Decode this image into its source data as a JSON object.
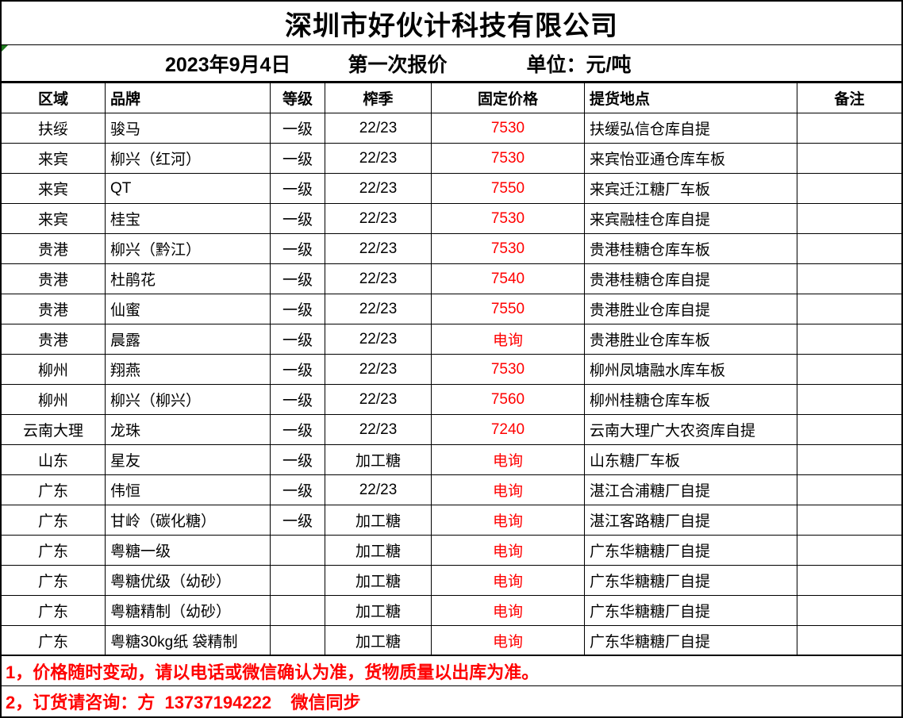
{
  "header": {
    "company": "深圳市好伙计科技有限公司",
    "date": "2023年9月4日",
    "quote_round": "第一次报价",
    "unit": "单位：元/吨"
  },
  "table": {
    "columns": {
      "region": "区域",
      "brand": "品牌",
      "grade": "等级",
      "season": "榨季",
      "price": "固定价格",
      "location": "提货地点",
      "remark": "备注"
    },
    "rows": [
      {
        "region": "扶绥",
        "brand": "骏马",
        "grade": "一级",
        "season": "22/23",
        "price": "7530",
        "location": "扶缓弘信仓库自提",
        "remark": ""
      },
      {
        "region": "来宾",
        "brand": "柳兴（红河）",
        "grade": "一级",
        "season": "22/23",
        "price": "7530",
        "location": "来宾怡亚通仓库车板",
        "remark": ""
      },
      {
        "region": "来宾",
        "brand": "QT",
        "grade": "一级",
        "season": "22/23",
        "price": "7550",
        "location": "来宾迁江糖厂车板",
        "remark": ""
      },
      {
        "region": "来宾",
        "brand": "桂宝",
        "grade": "一级",
        "season": "22/23",
        "price": "7530",
        "location": "来宾融桂仓库自提",
        "remark": ""
      },
      {
        "region": "贵港",
        "brand": "柳兴（黔江）",
        "grade": "一级",
        "season": "22/23",
        "price": "7530",
        "location": "贵港桂糖仓库车板",
        "remark": ""
      },
      {
        "region": "贵港",
        "brand": "杜鹃花",
        "grade": "一级",
        "season": "22/23",
        "price": "7540",
        "location": "贵港桂糖仓库自提",
        "remark": ""
      },
      {
        "region": "贵港",
        "brand": "仙蜜",
        "grade": "一级",
        "season": "22/23",
        "price": "7550",
        "location": "贵港胜业仓库自提",
        "remark": ""
      },
      {
        "region": "贵港",
        "brand": "晨露",
        "grade": "一级",
        "season": "22/23",
        "price": "电询",
        "location": "贵港胜业仓库车板",
        "remark": ""
      },
      {
        "region": "柳州",
        "brand": "翔燕",
        "grade": "一级",
        "season": "22/23",
        "price": "7530",
        "location": "柳州凤塘融水库车板",
        "remark": ""
      },
      {
        "region": "柳州",
        "brand": "柳兴（柳兴）",
        "grade": "一级",
        "season": "22/23",
        "price": "7560",
        "location": "柳州桂糖仓库车板",
        "remark": ""
      },
      {
        "region": "云南大理",
        "brand": "龙珠",
        "grade": "一级",
        "season": "22/23",
        "price": "7240",
        "location": "云南大理广大农资库自提",
        "remark": ""
      },
      {
        "region": "山东",
        "brand": "星友",
        "grade": "一级",
        "season": "加工糖",
        "price": "电询",
        "location": "山东糖厂车板",
        "remark": ""
      },
      {
        "region": "广东",
        "brand": "伟恒",
        "grade": "一级",
        "season": "22/23",
        "price": "电询",
        "location": "湛江合浦糖厂自提",
        "remark": ""
      },
      {
        "region": "广东",
        "brand": "甘岭（碳化糖）",
        "grade": "一级",
        "season": "加工糖",
        "price": "电询",
        "location": "湛江客路糖厂自提",
        "remark": ""
      },
      {
        "region": "广东",
        "brand": "粤糖一级",
        "grade": "",
        "season": "加工糖",
        "price": "电询",
        "location": "广东华糖糖厂自提",
        "remark": ""
      },
      {
        "region": "广东",
        "brand": "粤糖优级（幼砂）",
        "grade": "",
        "season": "加工糖",
        "price": "电询",
        "location": "广东华糖糖厂自提",
        "remark": ""
      },
      {
        "region": "广东",
        "brand": "粤糖精制（幼砂）",
        "grade": "",
        "season": "加工糖",
        "price": "电询",
        "location": "广东华糖糖厂自提",
        "remark": ""
      },
      {
        "region": "广东",
        "brand": "粤糖30kg纸 袋精制",
        "grade": "",
        "season": "加工糖",
        "price": "电询",
        "location": "广东华糖糖厂自提",
        "remark": ""
      }
    ]
  },
  "footer": {
    "note1": "1，价格随时变动，请以电话或微信确认为准，货物质量以出库为准。",
    "note2": "2，订货请咨询：方  13737194222    微信同步"
  },
  "colors": {
    "price_red": "#FF0000",
    "note_red": "#FF0000",
    "border": "#000000",
    "flag_green": "#1e7a1e"
  }
}
